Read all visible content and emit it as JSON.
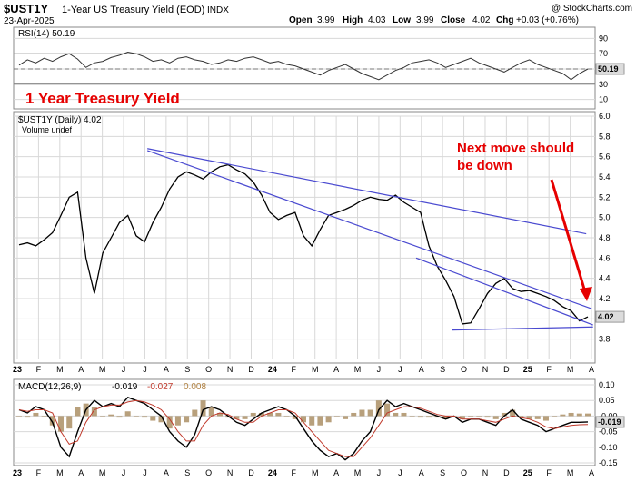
{
  "header": {
    "symbol": "$UST1Y",
    "description": "1-Year US Treasury Yield (EOD)",
    "exchange": "INDX",
    "date": "23-Apr-2025",
    "copyright": "@ StockCharts.com",
    "ohlc": {
      "open_label": "Open",
      "open": "3.99",
      "high_label": "High",
      "high": "4.03",
      "low_label": "Low",
      "low": "3.99",
      "close_label": "Close",
      "close": "4.02",
      "chg_label": "Chg",
      "chg": "+0.03 (+0.76%)"
    }
  },
  "chart_data": [
    {
      "type": "line",
      "panel": "rsi",
      "legend": "RSI(14) 50.19",
      "last_value": "50.19",
      "ylim": [
        0,
        100
      ],
      "yticks": [
        "90",
        "70",
        "50",
        "30",
        "10"
      ],
      "levels": [
        70,
        50,
        30
      ],
      "annotation": "1 Year Treasury Yield",
      "series": [
        {
          "values": [
            55,
            62,
            58,
            64,
            60,
            66,
            70,
            63,
            52,
            58,
            60,
            65,
            68,
            72,
            70,
            66,
            60,
            62,
            58,
            64,
            66,
            62,
            60,
            56,
            58,
            62,
            60,
            64,
            66,
            62,
            58,
            60,
            56,
            54,
            50,
            46,
            42,
            48,
            52,
            56,
            50,
            44,
            40,
            36,
            42,
            48,
            52,
            58,
            60,
            62,
            58,
            52,
            56,
            60,
            64,
            58,
            54,
            50,
            46,
            52,
            58,
            62,
            56,
            52,
            48,
            44,
            36,
            44,
            50
          ]
        }
      ]
    },
    {
      "type": "line",
      "panel": "price",
      "legend": "$UST1Y (Daily) 4.02",
      "volume_legend": "Volume undef",
      "x_ticks": [
        "23",
        "F",
        "M",
        "A",
        "M",
        "J",
        "J",
        "A",
        "S",
        "O",
        "N",
        "D",
        "24",
        "F",
        "M",
        "A",
        "M",
        "J",
        "J",
        "A",
        "S",
        "O",
        "N",
        "D",
        "25",
        "F",
        "M",
        "A"
      ],
      "ylim": [
        3.6,
        6.0
      ],
      "yticks": [
        "6.0",
        "5.8",
        "5.6",
        "5.4",
        "5.2",
        "5.0",
        "4.8",
        "4.6",
        "4.4",
        "4.2",
        "4.0",
        "3.8"
      ],
      "last_value": "4.02",
      "series": [
        {
          "values": [
            4.73,
            4.75,
            4.72,
            4.78,
            4.85,
            5.02,
            5.2,
            5.25,
            4.6,
            4.25,
            4.65,
            4.8,
            4.95,
            5.02,
            4.82,
            4.76,
            4.95,
            5.1,
            5.28,
            5.4,
            5.45,
            5.42,
            5.38,
            5.45,
            5.5,
            5.52,
            5.47,
            5.43,
            5.35,
            5.22,
            5.05,
            4.98,
            5.02,
            5.05,
            4.82,
            4.72,
            4.88,
            5.02,
            5.05,
            5.08,
            5.12,
            5.17,
            5.2,
            5.18,
            5.17,
            5.22,
            5.15,
            5.1,
            5.05,
            4.72,
            4.52,
            4.38,
            4.22,
            3.95,
            3.96,
            4.1,
            4.25,
            4.35,
            4.4,
            4.3,
            4.27,
            4.28,
            4.25,
            4.22,
            4.18,
            4.12,
            4.08,
            3.98,
            4.02
          ]
        }
      ],
      "trendlines": [
        {
          "from": [
            "2023-07-15",
            5.68
          ],
          "to": [
            "2025-04-15",
            4.84
          ]
        },
        {
          "from": [
            "2023-07-15",
            5.66
          ],
          "to": [
            "2025-04-23",
            4.1
          ]
        },
        {
          "from": [
            "2024-08-10",
            4.6
          ],
          "to": [
            "2025-04-25",
            3.94
          ]
        },
        {
          "from": [
            "2024-10-01",
            3.89
          ],
          "to": [
            "2025-04-25",
            3.92
          ]
        }
      ],
      "annotation": {
        "text": [
          "Next move should",
          "be down"
        ],
        "color": "#e60000"
      }
    },
    {
      "type": "line",
      "panel": "macd",
      "legend": {
        "name": "MACD(12,26,9)",
        "values": [
          "-0.019",
          "-0.027",
          "0.008"
        ]
      },
      "x_ticks": [
        "23",
        "F",
        "M",
        "A",
        "M",
        "J",
        "J",
        "A",
        "S",
        "O",
        "N",
        "D",
        "24",
        "F",
        "M",
        "A",
        "M",
        "J",
        "J",
        "A",
        "S",
        "O",
        "N",
        "D",
        "25",
        "F",
        "M",
        "A"
      ],
      "ylim": [
        -0.15,
        0.1
      ],
      "yticks": [
        "0.10",
        "0.05",
        "-0.00",
        "-0.05",
        "-0.10",
        "-0.15"
      ],
      "last_value": "-0.019",
      "series": [
        {
          "values": [
            0.02,
            0.01,
            0.03,
            0.02,
            -0.02,
            -0.1,
            -0.13,
            -0.05,
            0.02,
            0.05,
            0.03,
            0.04,
            0.03,
            0.06,
            0.05,
            0.04,
            0.02,
            0.0,
            -0.05,
            -0.08,
            -0.1,
            -0.06,
            0.02,
            0.03,
            0.02,
            0.0,
            -0.02,
            -0.03,
            -0.01,
            0.01,
            0.02,
            0.03,
            0.02,
            0.0,
            -0.04,
            -0.08,
            -0.11,
            -0.13,
            -0.12,
            -0.14,
            -0.12,
            -0.08,
            -0.05,
            0.02,
            0.05,
            0.03,
            0.04,
            0.03,
            0.02,
            0.01,
            0.0,
            -0.01,
            0.0,
            -0.02,
            -0.01,
            -0.01,
            -0.02,
            -0.03,
            0.0,
            0.02,
            -0.01,
            -0.02,
            -0.03,
            -0.05,
            -0.04,
            -0.03,
            -0.02,
            -0.02,
            -0.019
          ]
        },
        {
          "values": [
            0.02,
            0.015,
            0.02,
            0.02,
            0.01,
            -0.05,
            -0.09,
            -0.08,
            -0.02,
            0.02,
            0.03,
            0.035,
            0.035,
            0.045,
            0.05,
            0.045,
            0.035,
            0.02,
            -0.01,
            -0.05,
            -0.08,
            -0.08,
            -0.03,
            0.0,
            0.01,
            0.005,
            -0.01,
            -0.02,
            -0.02,
            0.0,
            0.01,
            0.02,
            0.02,
            0.01,
            -0.02,
            -0.05,
            -0.08,
            -0.11,
            -0.12,
            -0.13,
            -0.13,
            -0.1,
            -0.07,
            -0.03,
            0.01,
            0.02,
            0.03,
            0.03,
            0.025,
            0.015,
            0.005,
            0.0,
            0.0,
            -0.01,
            -0.01,
            -0.01,
            -0.015,
            -0.02,
            -0.01,
            0.0,
            -0.005,
            -0.01,
            -0.02,
            -0.035,
            -0.04,
            -0.035,
            -0.03,
            -0.028,
            -0.027
          ]
        }
      ]
    }
  ],
  "colors": {
    "series": "#000000",
    "trend": "#4a4ad0",
    "accent": "#e60000",
    "grid": "#d8d8d8",
    "badge": "#dcdcdc"
  }
}
